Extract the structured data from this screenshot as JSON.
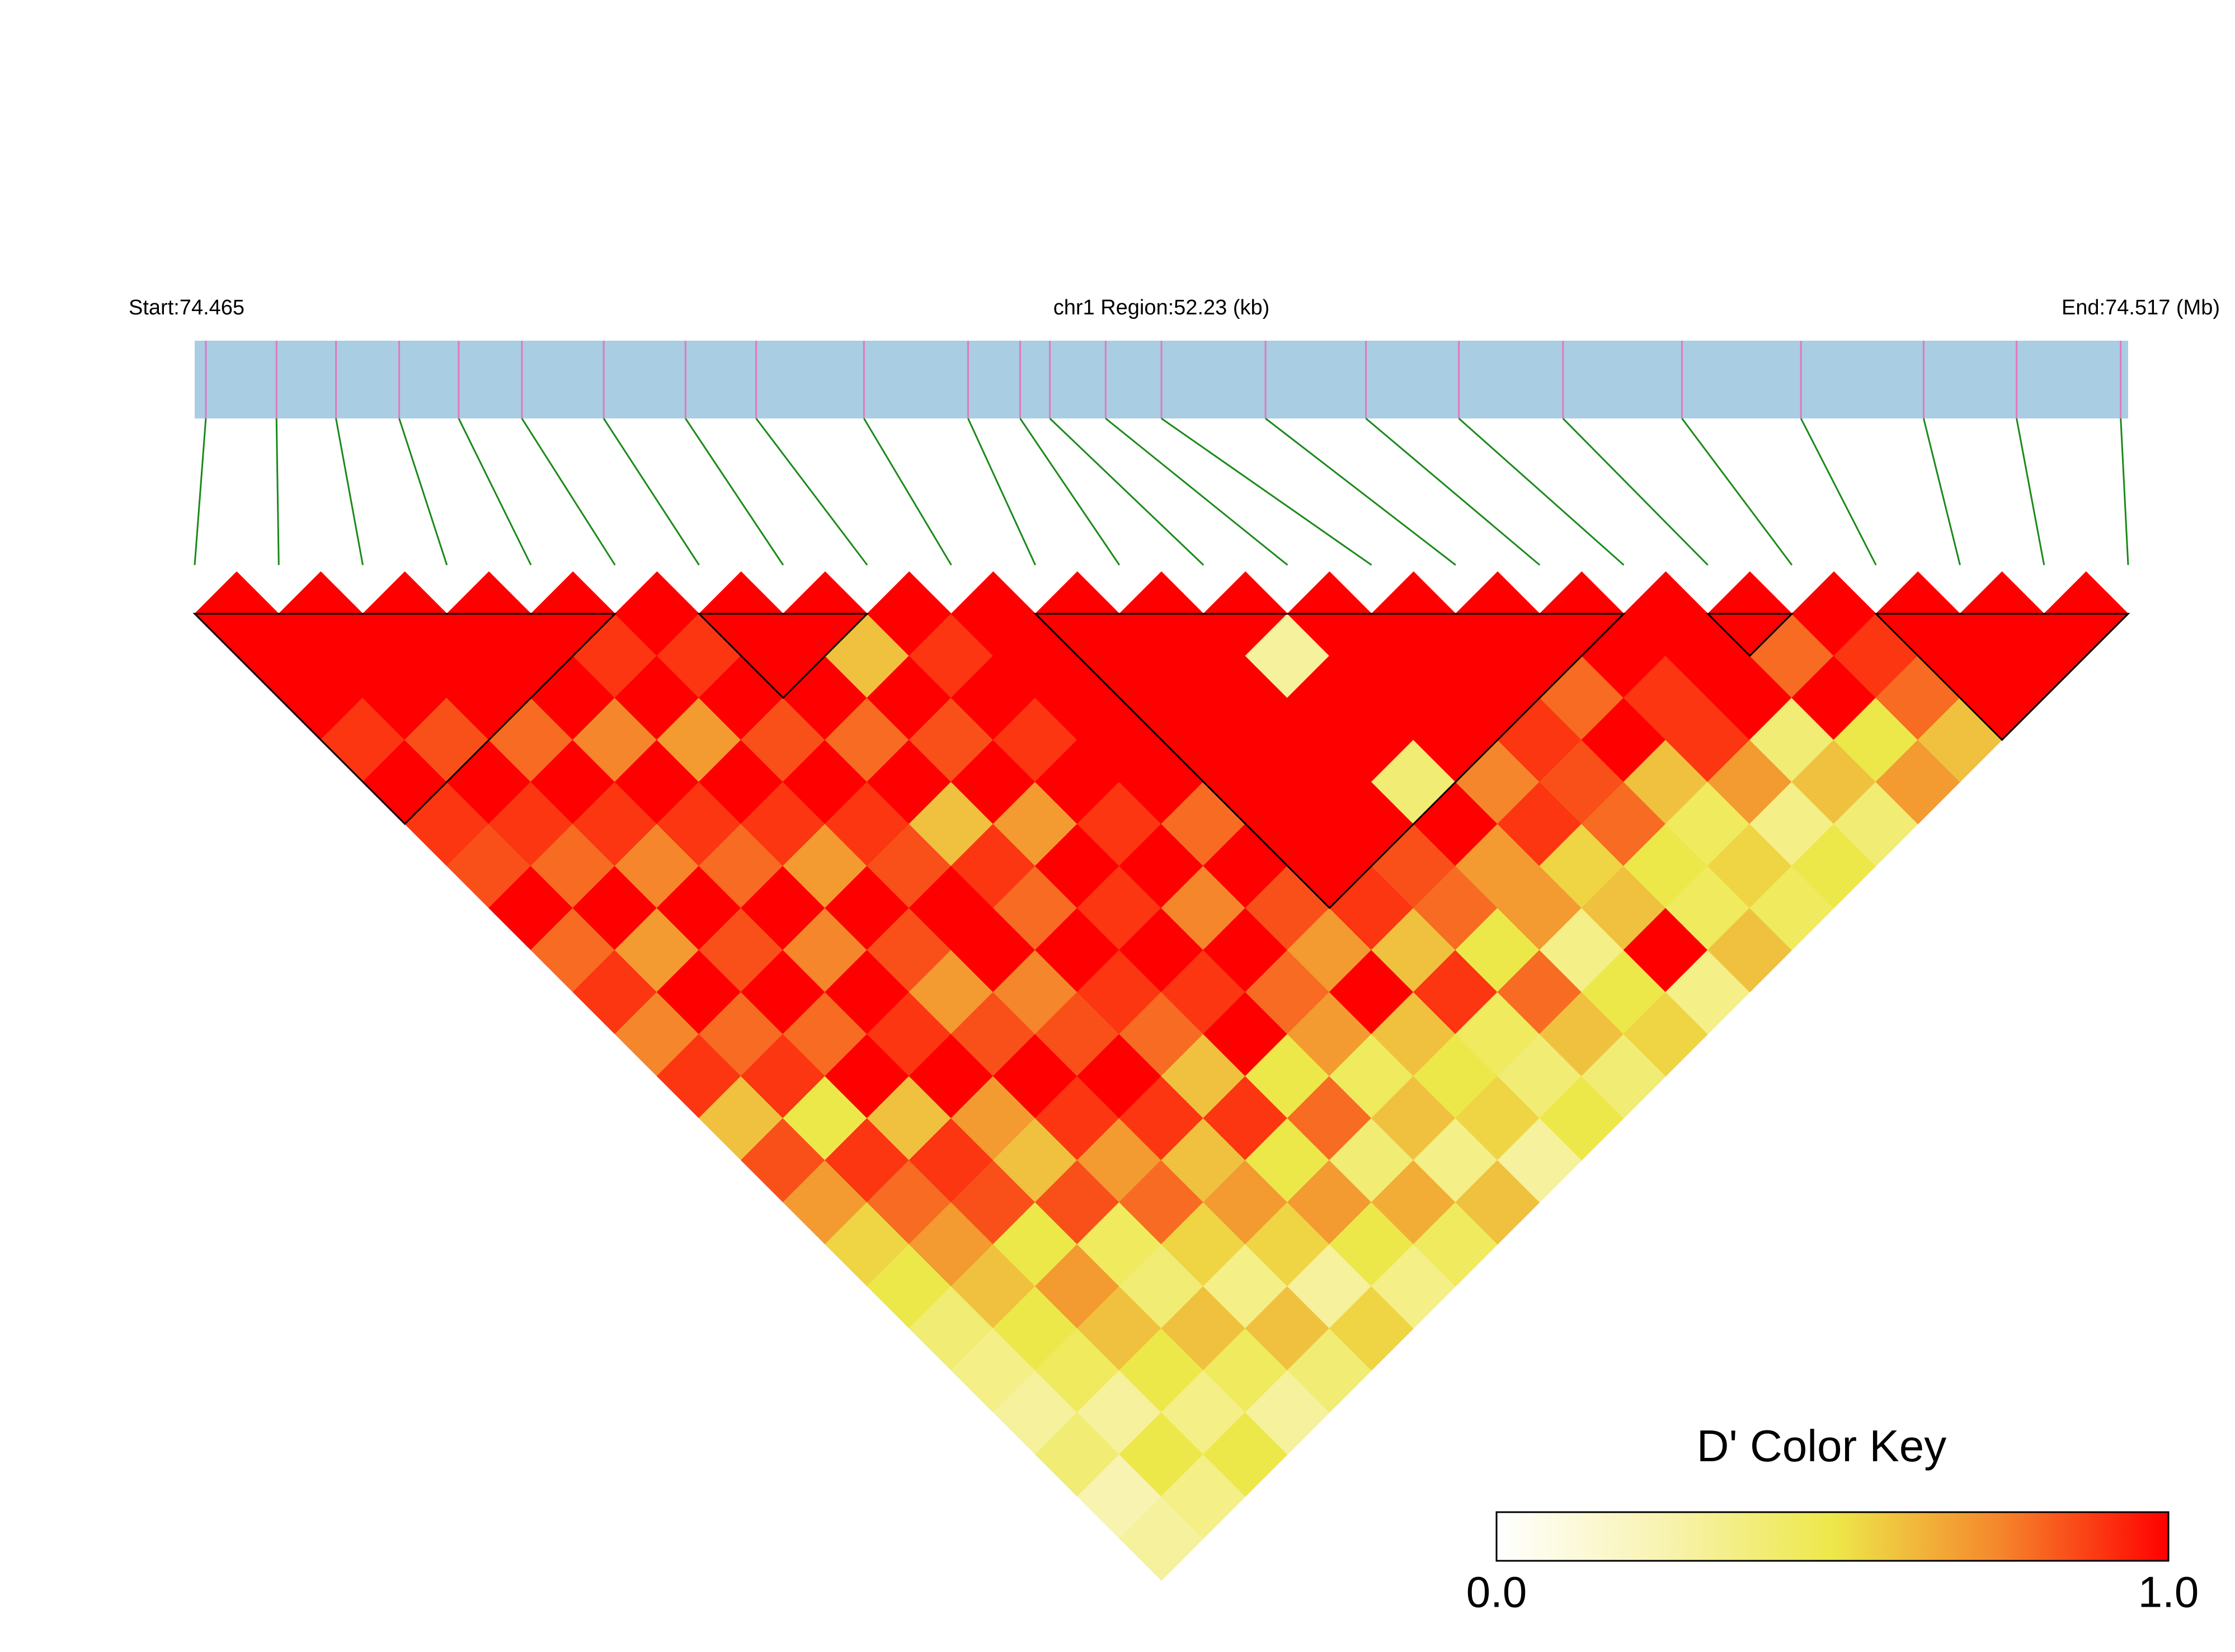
{
  "chart_data": {
    "type": "ld-heatmap",
    "start_label": "Start:74.465",
    "region_label": "chr1 Region:52.23 (kb)",
    "end_label": "End:74.517 (Mb)",
    "xlim": [
      74.465,
      74.517
    ],
    "positions": [
      74.4653,
      74.4672,
      74.4688,
      74.4705,
      74.4721,
      74.4738,
      74.476,
      74.4782,
      74.4801,
      74.483,
      74.4858,
      74.4872,
      74.488,
      74.4895,
      74.491,
      74.4938,
      74.4965,
      74.499,
      74.5018,
      74.505,
      74.5082,
      74.5115,
      74.514,
      74.5168
    ],
    "values": [
      [],
      [
        1
      ],
      [
        1,
        1
      ],
      [
        1,
        1,
        1
      ],
      [
        0.9,
        1,
        1,
        1
      ],
      [
        1,
        0.85,
        1,
        1,
        1
      ],
      [
        0.9,
        1,
        0.8,
        1,
        0.9,
        1
      ],
      [
        0.85,
        0.9,
        1,
        0.75,
        1,
        0.9,
        1
      ],
      [
        1,
        0.8,
        0.9,
        1,
        0.7,
        1,
        1,
        1
      ],
      [
        0.8,
        1,
        0.75,
        0.9,
        1,
        0.85,
        1,
        0.6,
        1
      ],
      [
        0.9,
        0.7,
        1,
        0.8,
        0.9,
        1,
        0.8,
        1,
        0.9,
        1
      ],
      [
        0.75,
        1,
        0.85,
        1,
        0.7,
        0.9,
        1,
        0.85,
        1,
        1,
        1
      ],
      [
        0.9,
        0.8,
        1,
        0.75,
        1,
        0.85,
        0.6,
        1,
        0.9,
        1,
        1,
        1
      ],
      [
        0.6,
        0.9,
        0.8,
        1,
        0.85,
        1,
        0.9,
        0.7,
        1,
        1,
        1,
        1,
        1
      ],
      [
        0.85,
        0.5,
        1,
        0.9,
        0.7,
        1,
        0.8,
        1,
        0.9,
        1,
        1,
        1,
        0.3,
        1
      ],
      [
        0.7,
        0.9,
        0.6,
        1,
        0.85,
        0.75,
        1,
        0.9,
        1,
        0.8,
        1,
        1,
        1,
        1,
        1
      ],
      [
        0.55,
        0.8,
        0.9,
        0.7,
        1,
        0.85,
        0.9,
        1,
        0.75,
        1,
        1,
        1,
        1,
        1,
        1,
        1
      ],
      [
        0.5,
        0.7,
        0.85,
        0.6,
        0.9,
        1,
        0.8,
        0.9,
        1,
        0.85,
        1,
        1,
        0.4,
        1,
        1,
        1,
        1
      ],
      [
        0.4,
        0.6,
        0.5,
        0.85,
        0.7,
        0.9,
        0.6,
        1,
        0.8,
        0.7,
        0.9,
        0.85,
        1,
        0.75,
        0.9,
        0.8,
        1,
        1
      ],
      [
        0.35,
        0.5,
        0.7,
        0.45,
        0.8,
        0.6,
        0.9,
        0.5,
        0.7,
        1,
        0.6,
        0.8,
        0.7,
        0.9,
        0.85,
        1,
        0.9,
        1,
        1
      ],
      [
        0.3,
        0.45,
        0.6,
        0.4,
        0.55,
        0.7,
        0.5,
        0.8,
        0.45,
        0.6,
        0.9,
        0.5,
        0.7,
        0.55,
        0.8,
        0.6,
        0.9,
        1,
        0.8,
        1
      ],
      [
        0.4,
        0.3,
        0.5,
        0.6,
        0.35,
        0.55,
        0.7,
        0.4,
        0.6,
        0.5,
        0.45,
        0.8,
        0.35,
        0.6,
        0.5,
        0.45,
        0.7,
        0.4,
        1,
        0.9,
        1
      ],
      [
        0.25,
        0.5,
        0.35,
        0.45,
        0.6,
        0.3,
        0.5,
        0.65,
        0.35,
        0.55,
        0.4,
        0.6,
        0.5,
        1,
        0.45,
        0.55,
        0.35,
        0.6,
        0.5,
        0.8,
        1,
        1
      ],
      [
        0.3,
        0.35,
        0.5,
        0.3,
        0.4,
        0.55,
        0.35,
        0.45,
        0.6,
        0.3,
        0.5,
        0.4,
        0.55,
        0.35,
        0.6,
        0.45,
        0.5,
        0.4,
        0.7,
        0.6,
        1,
        1,
        1
      ]
    ],
    "blocks": [
      [
        0,
        5
      ],
      [
        6,
        8
      ],
      [
        10,
        17
      ],
      [
        18,
        19
      ],
      [
        20,
        23
      ]
    ],
    "colormap": [
      "#ffffff",
      "#f8f3b0",
      "#ede84a",
      "#f5862b",
      "#ff0000"
    ],
    "map_color": "#a9cde2",
    "marker_color": "#e377c2",
    "connector_color": "#1a8a1a",
    "colorkey_title": "D' Color Key",
    "colorkey_ticks": [
      {
        "value": 0,
        "label": "0.0"
      },
      {
        "value": 1,
        "label": "1.0"
      }
    ]
  }
}
